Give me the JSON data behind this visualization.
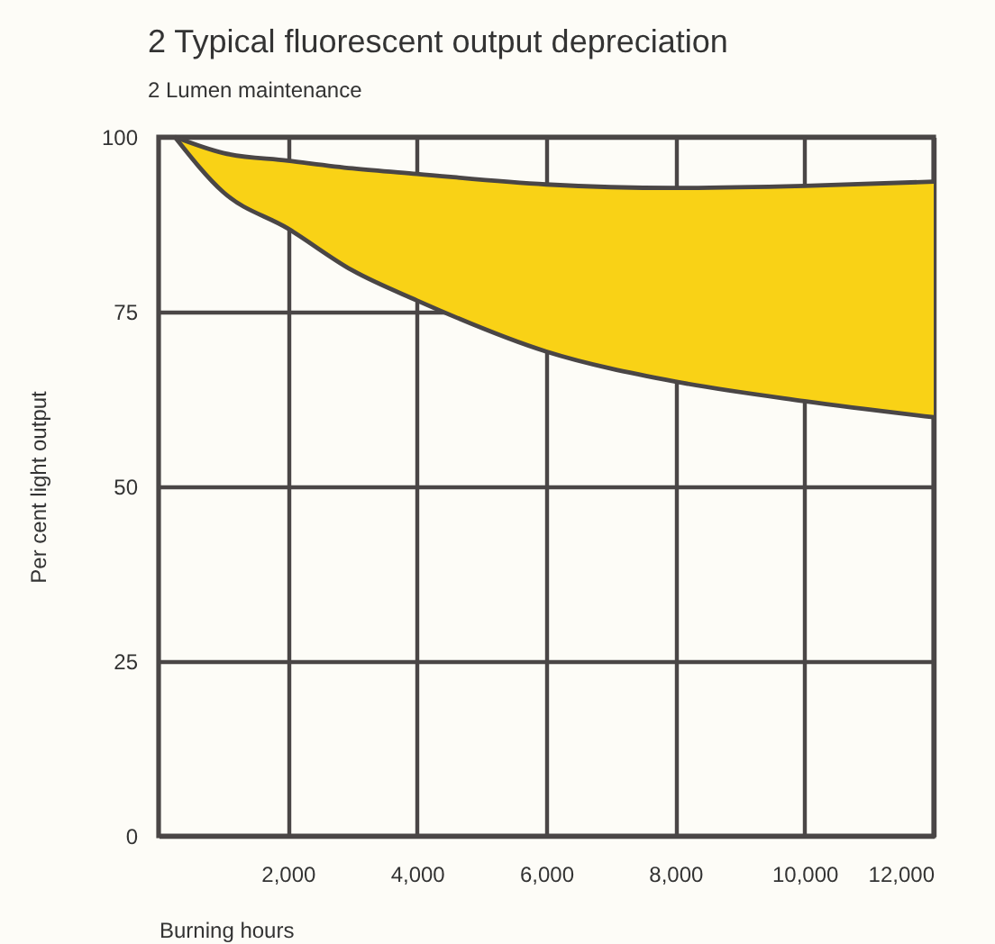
{
  "chart_data": {
    "type": "line",
    "title": "2 Typical fluorescent output depreciation",
    "subtitle": "2 Lumen maintenance",
    "xlabel": "Burning hours",
    "ylabel": "Per cent light output",
    "x": [
      250,
      1000,
      2000,
      3000,
      4000,
      6000,
      8000,
      10000,
      12000
    ],
    "series": [
      {
        "color": "#4a4646",
        "values": [
          100,
          97.7,
          96.6,
          95.5,
          94.7,
          93.2,
          92.7,
          93.0,
          93.6
        ],
        "lower": [
          100,
          92.1,
          86.9,
          80.9,
          76.6,
          69.3,
          65.0,
          62.2,
          59.9
        ],
        "upper": [
          100,
          97.7,
          96.6,
          95.5,
          94.7,
          93.2,
          92.7,
          93.0,
          93.6
        ]
      },
      {
        "color": "#4a4646",
        "values": [
          100,
          92.1,
          86.9,
          80.9,
          76.6,
          69.3,
          65.0,
          62.2,
          59.9
        ]
      }
    ],
    "xlim": [
      0,
      12000
    ],
    "xticks": [
      {
        "value": 2000,
        "label": "2,000"
      },
      {
        "value": 4000,
        "label": "4,000"
      },
      {
        "value": 6000,
        "label": "6,000"
      },
      {
        "value": 8000,
        "label": "8,000"
      },
      {
        "value": 10000,
        "label": "10,000"
      },
      {
        "value": 12000,
        "label": "12,000"
      }
    ],
    "ylim": [
      0,
      100
    ],
    "yticks": [
      0,
      25,
      50,
      75,
      100
    ],
    "grid": true,
    "line_style": "solid"
  }
}
